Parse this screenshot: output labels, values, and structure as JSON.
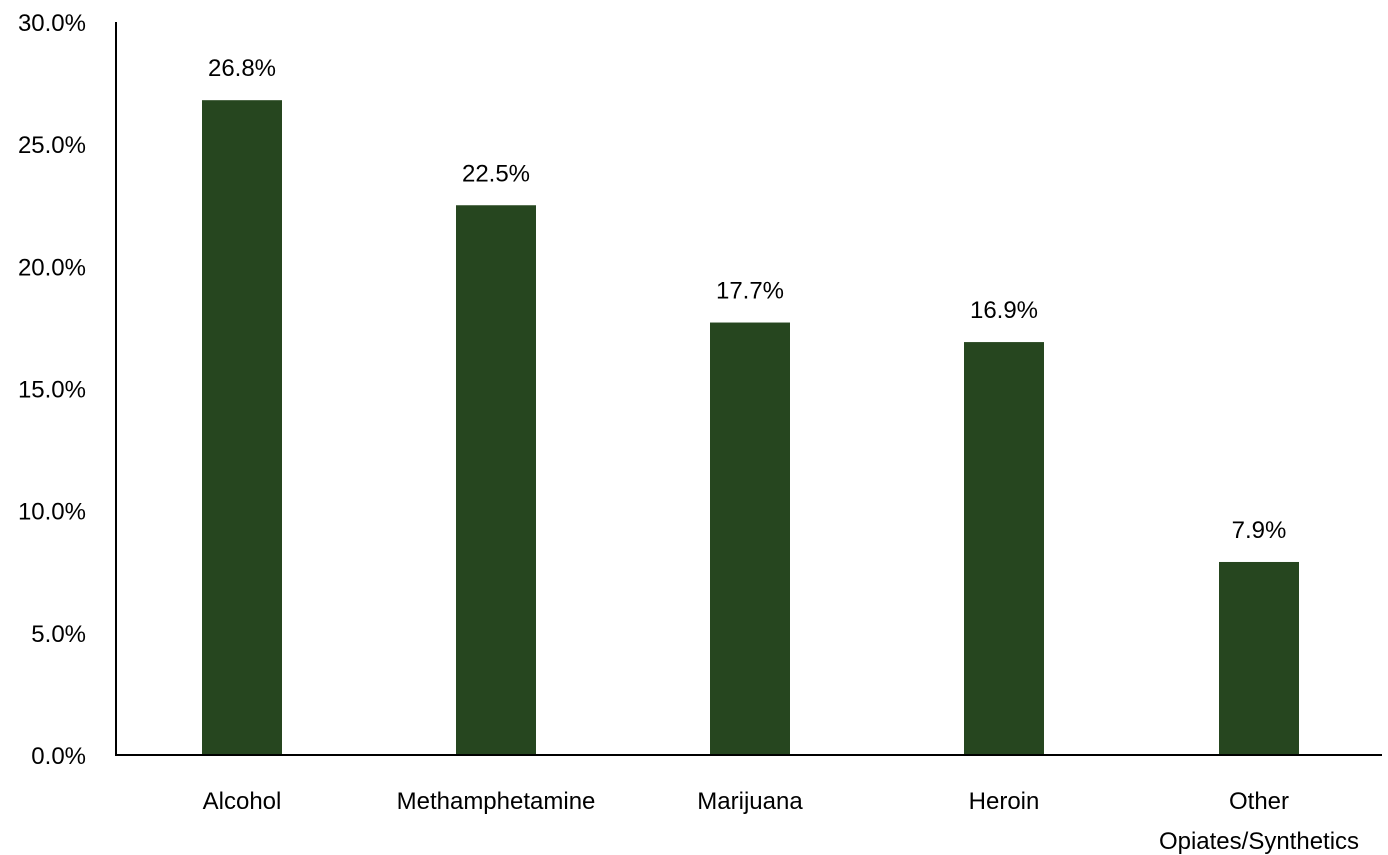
{
  "chart_data": {
    "type": "bar",
    "categories": [
      "Alcohol",
      "Methamphetamine",
      "Marijuana",
      "Heroin",
      "Other Opiates/Synthetics"
    ],
    "category_label_lines": [
      [
        "Alcohol"
      ],
      [
        "Methamphetamine"
      ],
      [
        "Marijuana"
      ],
      [
        "Heroin"
      ],
      [
        "Other",
        "Opiates/Synthetics"
      ]
    ],
    "values": [
      26.8,
      22.5,
      17.7,
      16.9,
      7.9
    ],
    "value_labels": [
      "26.8%",
      "22.5%",
      "17.7%",
      "16.9%",
      "7.9%"
    ],
    "ylim": [
      0,
      30
    ],
    "yticks": [
      0,
      5,
      10,
      15,
      20,
      25,
      30
    ],
    "ytick_labels": [
      "0.0%",
      "5.0%",
      "10.0%",
      "15.0%",
      "20.0%",
      "25.0%",
      "30.0%"
    ],
    "title": "",
    "xlabel": "",
    "ylabel": "",
    "grid": false,
    "legend": "none",
    "bar_color": "#26461f",
    "axis_color": "#000000"
  }
}
